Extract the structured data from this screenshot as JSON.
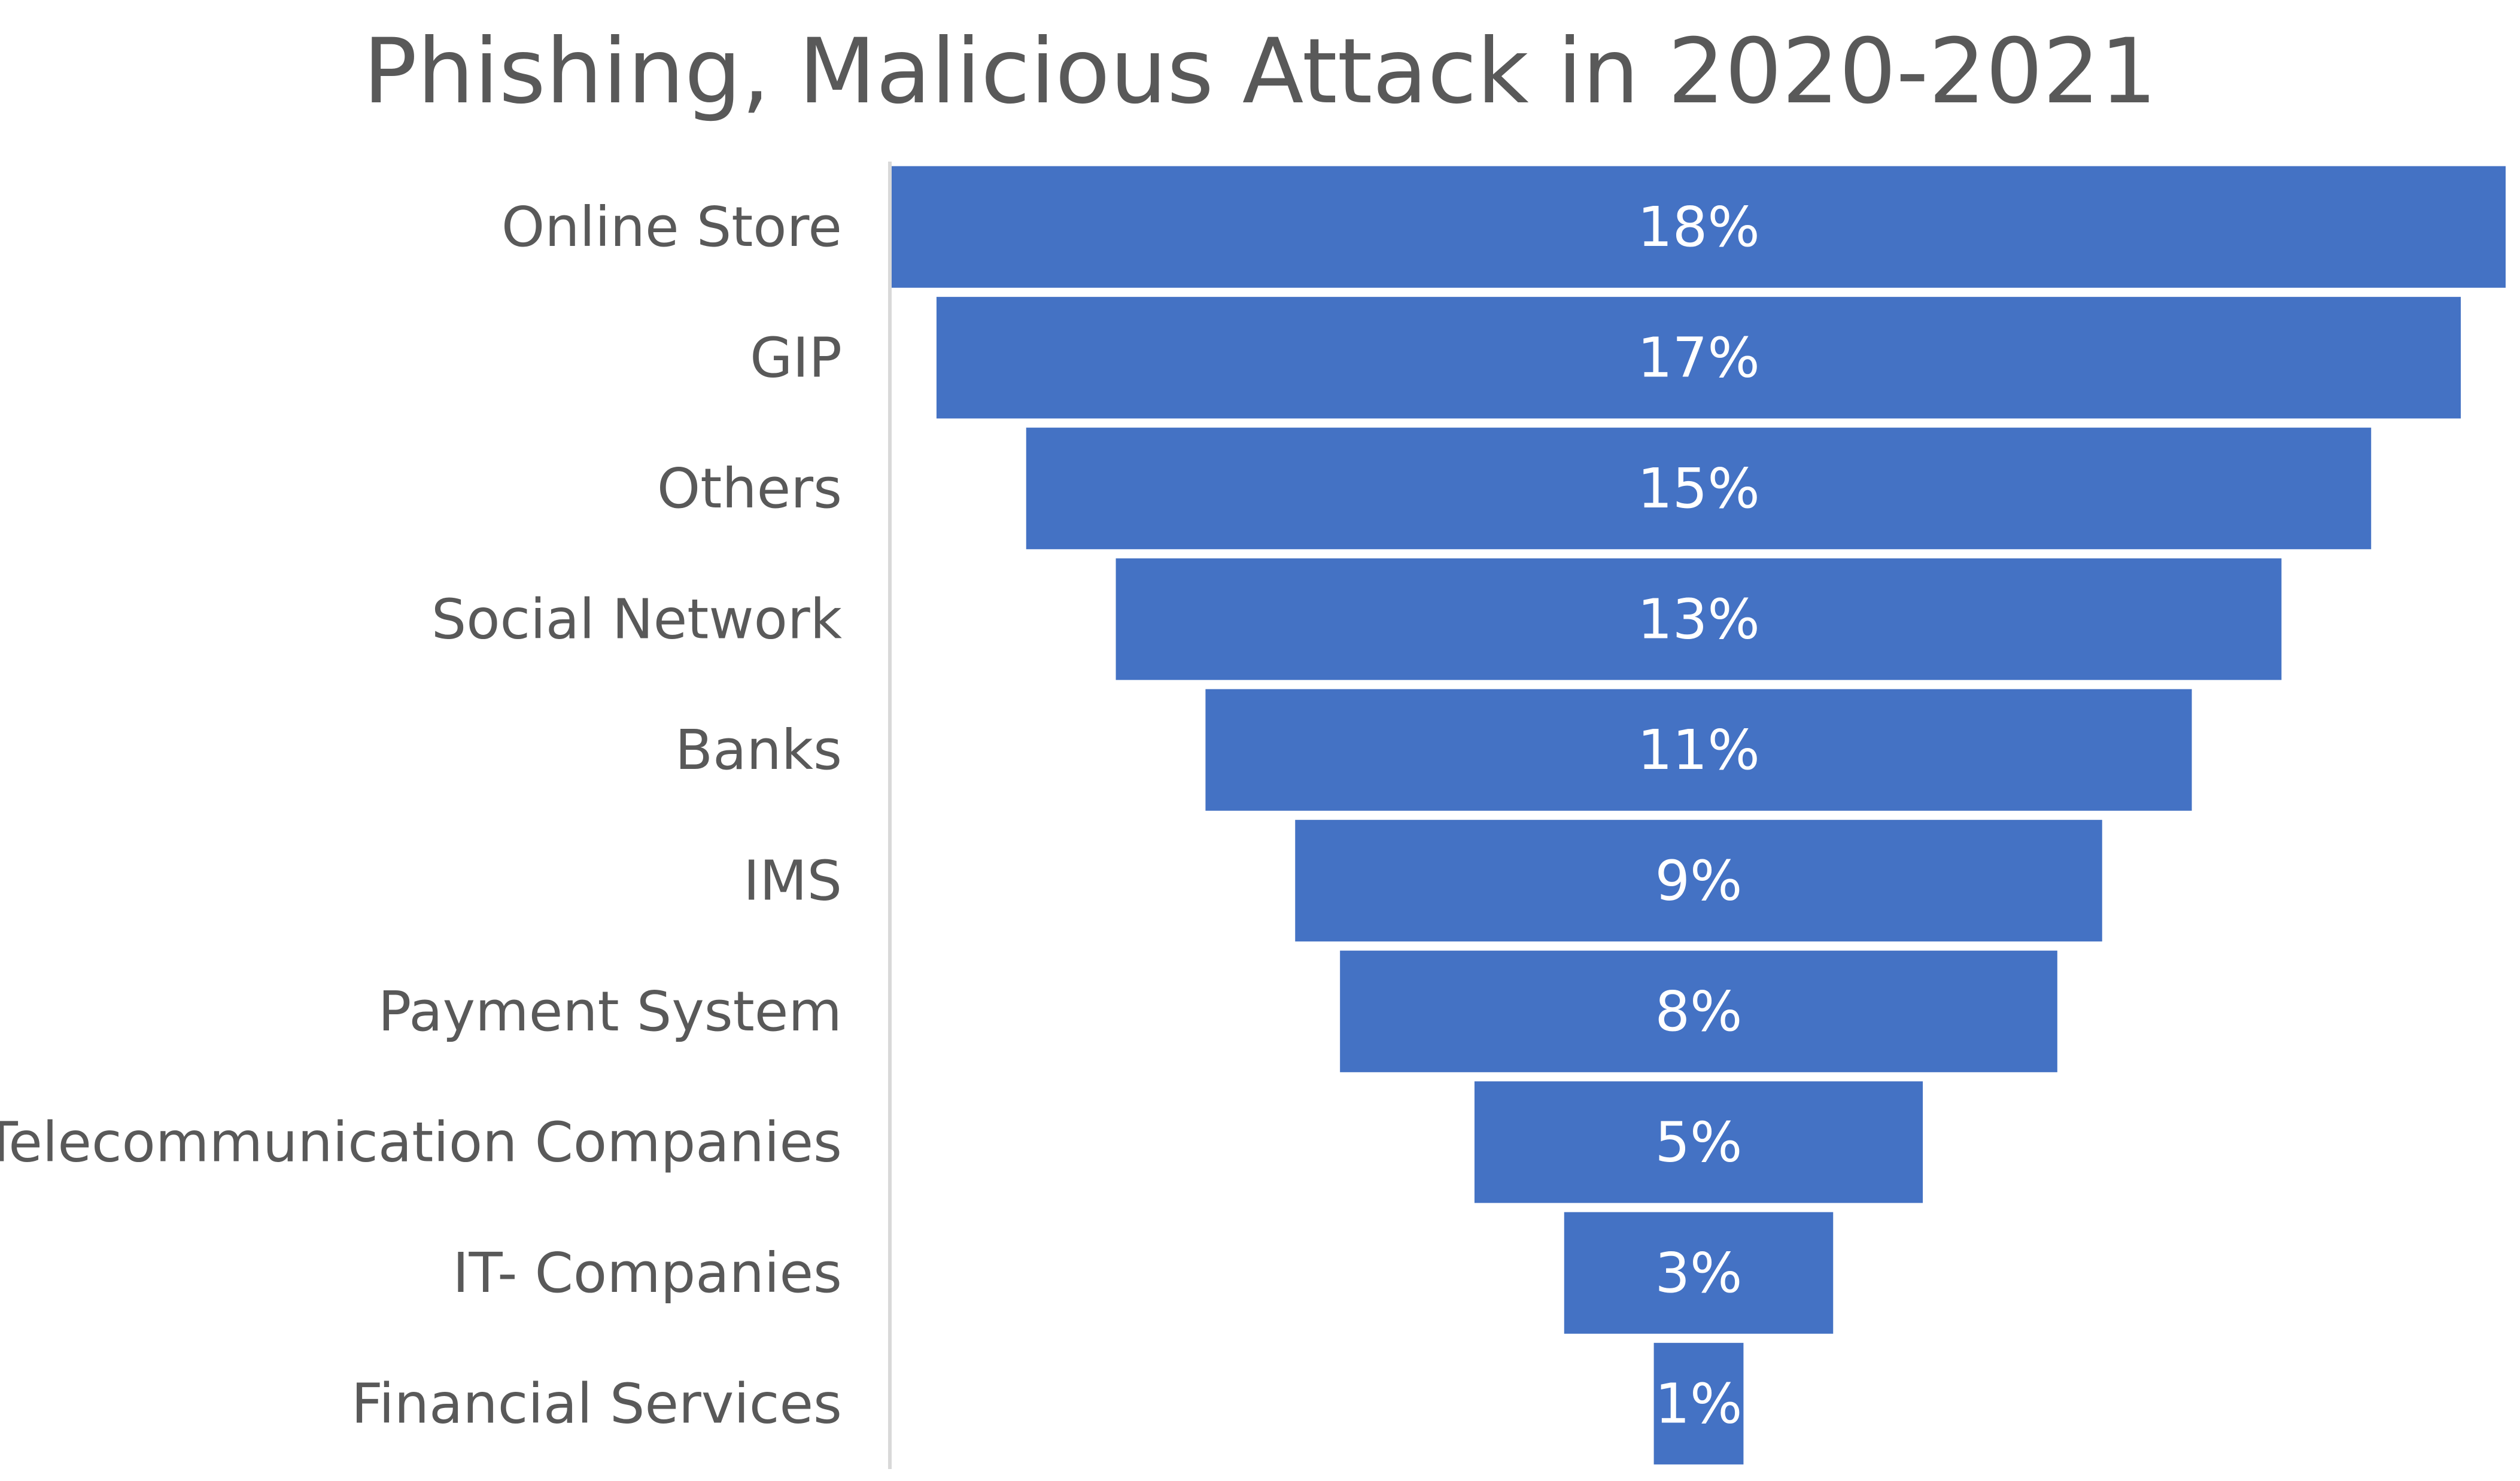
{
  "chart_data": {
    "type": "funnel",
    "title": "Phishing, Malicious Attack in 2020-2021",
    "categories": [
      "Online Store",
      "GIP",
      "Others",
      "Social Network",
      "Banks",
      "IMS",
      "Payment System",
      "Telecommunication Companies",
      "IT- Companies",
      "Financial Services"
    ],
    "values": [
      18,
      17,
      15,
      13,
      11,
      9,
      8,
      5,
      3,
      1
    ],
    "value_labels": [
      "18%",
      "17%",
      "15%",
      "13%",
      "11%",
      "9%",
      "8%",
      "5%",
      "3%",
      "1%"
    ],
    "unit": "%",
    "bar_color": "#4472C4",
    "label_color": "#FFFFFF",
    "category_label_color": "#595959",
    "axis_color": "#D9D9D9",
    "title_color": "#595959",
    "grid": false,
    "legend": "none"
  }
}
